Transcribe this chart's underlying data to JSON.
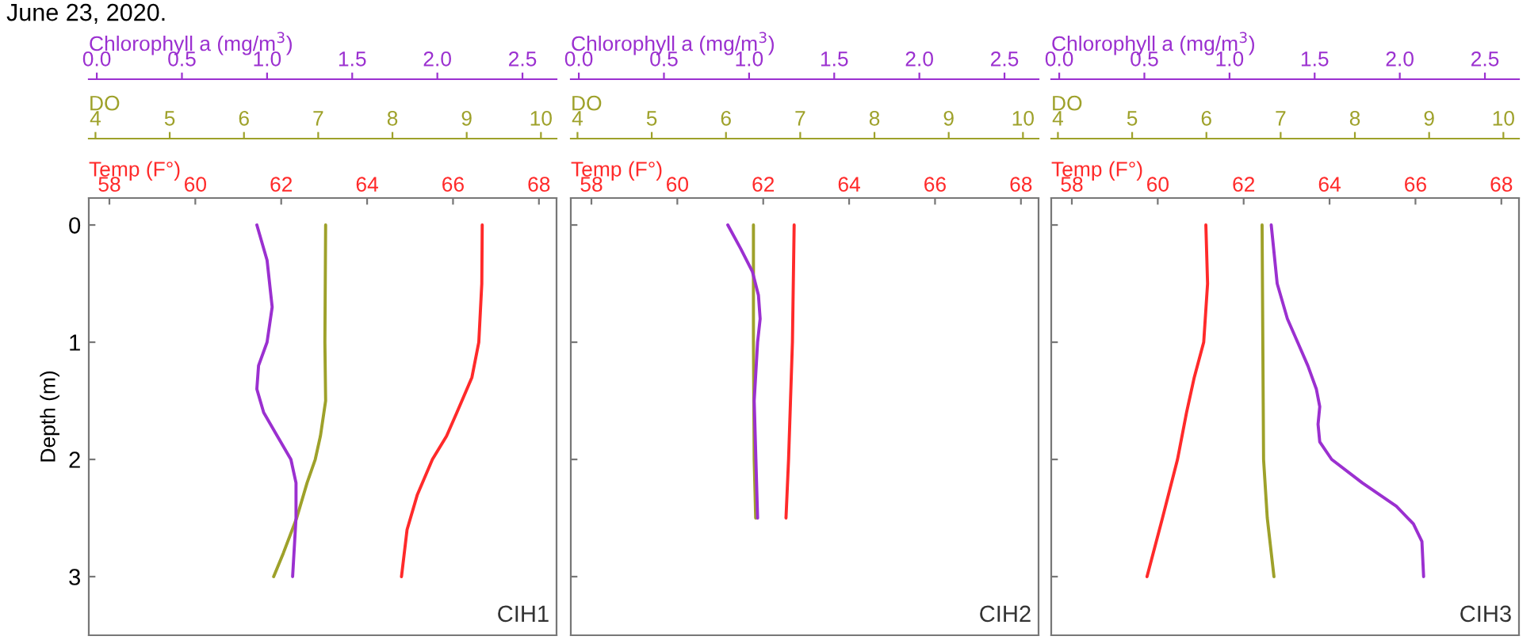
{
  "chart_data": [
    {
      "type": "line",
      "title": "June 23, 2020.",
      "ylabel": "Depth (m)",
      "xlabel": "Temp (F°)",
      "xlim": [
        57.52,
        68.41
      ],
      "xticks": [
        58,
        60,
        62,
        64,
        66,
        68
      ],
      "ylim": [
        3.5,
        -0.23
      ],
      "yticks": [
        0,
        1,
        2,
        3
      ],
      "annotations": [
        "CIH1"
      ],
      "series": [
        {
          "color": "#ff2a2a",
          "x": [
            66.68,
            66.67,
            66.6,
            66.44,
            66.09,
            65.85,
            65.52,
            65.17,
            64.93,
            64.8
          ],
          "values": [
            0,
            0.5,
            1,
            1.3,
            1.6,
            1.8,
            2,
            2.3,
            2.6,
            3
          ]
        }
      ]
    },
    {
      "type": "line",
      "xlabel": "DO",
      "tick_labels": "x",
      "xlim": [
        3.91,
        10.21
      ],
      "xticks": [
        4,
        5,
        6,
        7,
        8,
        9,
        10
      ],
      "ylim": [
        3.5,
        -0.23
      ],
      "series": [
        {
          "color": "#9ea12a",
          "x": [
            7.1,
            7.09,
            7.1,
            7.03,
            6.96,
            6.85,
            6.71,
            6.53,
            6.4
          ],
          "values": [
            0,
            1,
            1.5,
            1.8,
            2,
            2.2,
            2.5,
            2.8,
            3
          ]
        }
      ]
    },
    {
      "type": "line",
      "xlabel": "Chlorophyll a (mg/m$^{3}$)",
      "tick_labels": "x",
      "xlim": [
        -0.047,
        2.7
      ],
      "xticks": [
        {
          "value": 0,
          "label": "0.0"
        },
        {
          "value": 0.5,
          "label": "0.5"
        },
        {
          "value": 1,
          "label": "1.0"
        },
        {
          "value": 1.5,
          "label": "1.5"
        },
        {
          "value": 2,
          "label": "2.0"
        },
        {
          "value": 2.5,
          "label": "2.5"
        }
      ],
      "ylim": [
        3.5,
        -0.23
      ],
      "series": [
        {
          "color": "#9b30d0",
          "x": [
            0.94,
            1.0,
            1.03,
            1.0,
            0.95,
            0.94,
            0.98,
            1.06,
            1.14,
            1.17,
            1.17,
            1.15
          ],
          "values": [
            0,
            0.3,
            0.7,
            1,
            1.2,
            1.4,
            1.6,
            1.8,
            2,
            2.2,
            2.5,
            3
          ]
        }
      ]
    },
    {
      "type": "line",
      "xlabel": "Temp (F°)",
      "tick_labels": "x",
      "xlim": [
        57.52,
        68.41
      ],
      "xticks": [
        58,
        60,
        62,
        64,
        66,
        68
      ],
      "ylim": [
        3.5,
        -0.23
      ],
      "yticks": [
        0,
        1,
        2,
        3
      ],
      "annotations": [
        "CIH2"
      ],
      "series": [
        {
          "color": "#ff2a2a",
          "x": [
            62.72,
            62.68,
            62.59,
            62.53
          ],
          "values": [
            0,
            1,
            2,
            2.5
          ]
        }
      ]
    },
    {
      "type": "line",
      "xlabel": "DO",
      "tick_labels": "x",
      "xlim": [
        3.91,
        10.21
      ],
      "xticks": [
        4,
        5,
        6,
        7,
        8,
        9,
        10
      ],
      "ylim": [
        3.5,
        -0.23
      ],
      "series": [
        {
          "color": "#9ea12a",
          "x": [
            6.37,
            6.37,
            6.38,
            6.4
          ],
          "values": [
            0,
            1,
            2,
            2.5
          ]
        }
      ]
    },
    {
      "type": "line",
      "xlabel": "Chlorophyll a (mg/m$^{3}$)",
      "tick_labels": "x",
      "xlim": [
        -0.047,
        2.7
      ],
      "xticks": [
        {
          "value": 0,
          "label": "0.0"
        },
        {
          "value": 0.5,
          "label": "0.5"
        },
        {
          "value": 1,
          "label": "1.0"
        },
        {
          "value": 1.5,
          "label": "1.5"
        },
        {
          "value": 2,
          "label": "2.0"
        },
        {
          "value": 2.5,
          "label": "2.5"
        }
      ],
      "ylim": [
        3.5,
        -0.23
      ],
      "series": [
        {
          "color": "#9b30d0",
          "x": [
            0.875,
            0.95,
            1.02,
            1.055,
            1.065,
            1.05,
            1.03,
            1.04,
            1.05
          ],
          "values": [
            0,
            0.2,
            0.4,
            0.6,
            0.8,
            1,
            1.5,
            2,
            2.5
          ]
        }
      ]
    },
    {
      "type": "line",
      "xlabel": "Temp (F°)",
      "tick_labels": "x",
      "xlim": [
        57.52,
        68.41
      ],
      "xticks": [
        58,
        60,
        62,
        64,
        66,
        68
      ],
      "ylim": [
        3.5,
        -0.23
      ],
      "yticks": [
        0,
        1,
        2,
        3
      ],
      "annotations": [
        "CIH3"
      ],
      "series": [
        {
          "color": "#ff2a2a",
          "x": [
            61.12,
            61.16,
            61.07,
            60.85,
            60.67,
            60.46,
            60.11,
            59.75
          ],
          "values": [
            0,
            0.5,
            1,
            1.3,
            1.6,
            2,
            2.5,
            3
          ]
        }
      ]
    },
    {
      "type": "line",
      "xlabel": "DO",
      "tick_labels": "x",
      "xlim": [
        3.91,
        10.21
      ],
      "xticks": [
        4,
        5,
        6,
        7,
        8,
        9,
        10
      ],
      "ylim": [
        3.5,
        -0.23
      ],
      "series": [
        {
          "color": "#9ea12a",
          "x": [
            6.75,
            6.76,
            6.77,
            6.82,
            6.91
          ],
          "values": [
            0,
            1,
            2,
            2.5,
            3
          ]
        }
      ]
    },
    {
      "type": "line",
      "xlabel": "Chlorophyll a (mg/m$^{3}$)",
      "tick_labels": "x",
      "xlim": [
        -0.047,
        2.7
      ],
      "xticks": [
        {
          "value": 0,
          "label": "0.0"
        },
        {
          "value": 0.5,
          "label": "0.5"
        },
        {
          "value": 1,
          "label": "1.0"
        },
        {
          "value": 1.5,
          "label": "1.5"
        },
        {
          "value": 2,
          "label": "2.0"
        },
        {
          "value": 2.5,
          "label": "2.5"
        }
      ],
      "ylim": [
        3.5,
        -0.23
      ],
      "series": [
        {
          "color": "#9b30d0",
          "x": [
            1.245,
            1.28,
            1.34,
            1.4,
            1.46,
            1.51,
            1.53,
            1.52,
            1.53,
            1.6,
            1.78,
            1.98,
            2.08,
            2.13,
            2.14
          ],
          "values": [
            0,
            0.5,
            0.8,
            1,
            1.2,
            1.4,
            1.55,
            1.7,
            1.85,
            2,
            2.2,
            2.4,
            2.55,
            2.7,
            3
          ]
        }
      ]
    }
  ]
}
